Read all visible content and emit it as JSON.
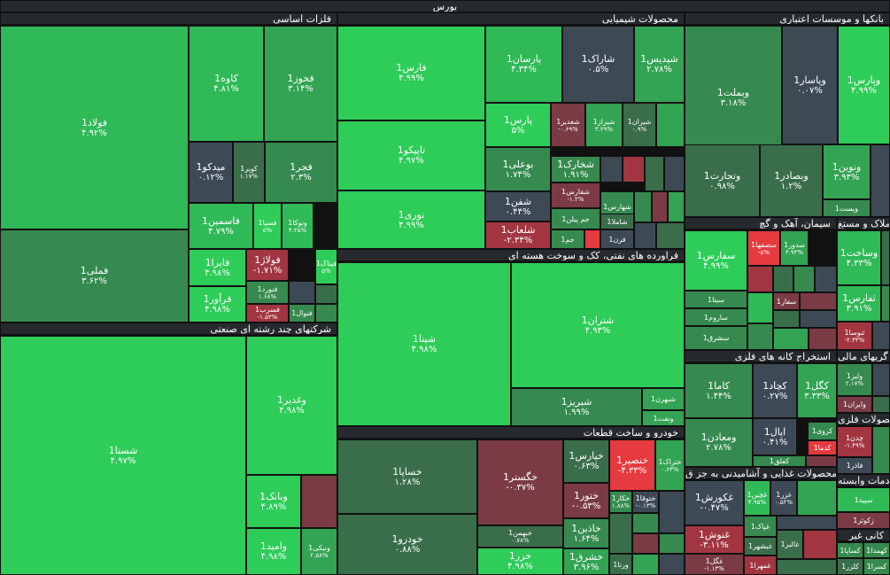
{
  "title": "بورس",
  "colors": {
    "g5": "#2ecc59",
    "g4": "#30b957",
    "g3": "#33a453",
    "g2": "#368a4f",
    "g1": "#3a6e4b",
    "n": "#3d4a55",
    "r1": "#7a3b45",
    "r2": "#a13641",
    "r3": "#e53a3f"
  },
  "groups": [
    {
      "id": "g-banks",
      "name": "بانکها و موسسات اعتباری"
    },
    {
      "id": "g-chem",
      "name": "محصولات شیمیایی"
    },
    {
      "id": "g-metals",
      "name": "فلزات اساسی"
    },
    {
      "id": "g-multi",
      "name": "شرکتهای چند رشته ای صنعتی"
    },
    {
      "id": "g-refinery",
      "name": "فراورده های نفتی، کک و سوخت هسته ای"
    },
    {
      "id": "g-auto",
      "name": "خودرو و ساخت قطعات"
    },
    {
      "id": "g-cement",
      "name": "سیمان، آهک و گچ"
    },
    {
      "id": "g-amlak",
      "name": "املاک و مستغ"
    },
    {
      "id": "g-mining",
      "name": "استخراج کانه های فلزی"
    },
    {
      "id": "g-finance",
      "name": "گریهای مالی"
    },
    {
      "id": "g-metalprod",
      "name": "محصولات فلزی"
    },
    {
      "id": "g-food",
      "name": "محصولات غذایی و آشامیدنی به جز ق"
    },
    {
      "id": "g-services",
      "name": "خدمات وابسته"
    },
    {
      "id": "g-nonmetal",
      "name": "کانی غیر"
    }
  ],
  "tiles": [
    {
      "sym": "فولاد1",
      "chg": "۴.۹۲%",
      "c": "g4"
    },
    {
      "sym": "فملی1",
      "chg": "۳.۶۲%",
      "c": "g2"
    },
    {
      "sym": "کاوه1",
      "chg": "۴.۸۱%",
      "c": "g4"
    },
    {
      "sym": "فخوز1",
      "chg": "۳.۱۴%",
      "c": "g3"
    },
    {
      "sym": "میدکو1",
      "chg": "۰.۱۲%",
      "c": "n"
    },
    {
      "sym": "کویر1",
      "chg": "۱.۱۷%",
      "c": "g1"
    },
    {
      "sym": "فجر1",
      "chg": "۲.۳%",
      "c": "g2"
    },
    {
      "sym": "فاسمین1",
      "chg": "۴.۷۹%",
      "c": "g4"
    },
    {
      "sym": "فسپا1",
      "chg": "۵%",
      "c": "g5"
    },
    {
      "sym": "ونوکا1",
      "chg": "۴.۲۵%",
      "c": "g4"
    },
    {
      "sym": "فایرا1",
      "chg": "۴.۹۸%",
      "c": "g5"
    },
    {
      "sym": "فولاژ1",
      "chg": "-۱.۷۱%",
      "c": "r2"
    },
    {
      "sym": "فیناک1",
      "chg": "۵%",
      "c": "g5"
    },
    {
      "sym": "فنورد1",
      "chg": "۱.۶۸%",
      "c": "g2"
    },
    {
      "sym": "فرآور1",
      "chg": "۴.۹۸%",
      "c": "g5"
    },
    {
      "sym": "فسرب1",
      "chg": "-۱.۵۳%",
      "c": "r2"
    },
    {
      "sym": "فنوال1",
      "chg": "",
      "c": "g2"
    },
    {
      "sym": "شستا1",
      "chg": "۴.۹۷%",
      "c": "g5"
    },
    {
      "sym": "وغدیر1",
      "chg": "۴.۹۸%",
      "c": "g5"
    },
    {
      "sym": "وبانک1",
      "chg": "۴.۸۹%",
      "c": "g5"
    },
    {
      "sym": "وامید1",
      "chg": "۴.۹۸%",
      "c": "g5"
    },
    {
      "sym": "ونیکی1",
      "chg": "۲.۵۸%",
      "c": "g3"
    },
    {
      "sym": "فارس1",
      "chg": "۴.۹۹%",
      "c": "g5"
    },
    {
      "sym": "تاپیکو1",
      "chg": "۴.۹۷%",
      "c": "g5"
    },
    {
      "sym": "نوری1",
      "chg": "۴.۹۹%",
      "c": "g5"
    },
    {
      "sym": "پارسان1",
      "chg": "۴.۳۴%",
      "c": "g4"
    },
    {
      "sym": "شاراک1",
      "chg": "۰.۵%",
      "c": "n"
    },
    {
      "sym": "شپدیس1",
      "chg": "۲.۷۸%",
      "c": "g3"
    },
    {
      "sym": "پارس1",
      "chg": "۵%",
      "c": "g5"
    },
    {
      "sym": "شغدیر1",
      "chg": "-۰.۶۹%",
      "c": "r1"
    },
    {
      "sym": "شیراز1",
      "chg": "۳.۲۹%",
      "c": "g3"
    },
    {
      "sym": "شیران1",
      "chg": "۰.۹%",
      "c": "g1"
    },
    {
      "sym": "بوعلی1",
      "chg": "۱.۷۴%",
      "c": "g2"
    },
    {
      "sym": "شخارک1",
      "chg": "۱.۹۱%",
      "c": "g2"
    },
    {
      "sym": "شفارس1",
      "chg": "-۱.۲%",
      "c": "r1"
    },
    {
      "sym": "شفن1",
      "chg": "۰.۴۴%",
      "c": "n"
    },
    {
      "sym": "جم پیلن1",
      "chg": "",
      "c": "g2"
    },
    {
      "sym": "شهارس1",
      "chg": "",
      "c": "g2"
    },
    {
      "sym": "شلعاب1",
      "chg": "-۲.۳۴%",
      "c": "r2"
    },
    {
      "sym": "جم1",
      "chg": "",
      "c": "g2"
    },
    {
      "sym": "شاملا1",
      "chg": "",
      "c": "g1"
    },
    {
      "sym": "قرن1",
      "chg": "",
      "c": "n"
    },
    {
      "sym": "شپنا1",
      "chg": "۴.۹۸%",
      "c": "g5"
    },
    {
      "sym": "شتران1",
      "chg": "۴.۹۳%",
      "c": "g5"
    },
    {
      "sym": "شبریز1",
      "chg": "۱.۹۹%",
      "c": "g2"
    },
    {
      "sym": "شبهرن1",
      "chg": "",
      "c": "g3"
    },
    {
      "sym": "ونفت1",
      "chg": "",
      "c": "g3"
    },
    {
      "sym": "خساپا1",
      "chg": "۱.۲۸%",
      "c": "g1"
    },
    {
      "sym": "خودرو1",
      "chg": "۰.۸۸%",
      "c": "g1"
    },
    {
      "sym": "خگستر1",
      "chg": "-۰.۳۷%",
      "c": "r1"
    },
    {
      "sym": "خبهمن1",
      "chg": "۰.۷۸%",
      "c": "g1"
    },
    {
      "sym": "خزر1",
      "chg": "۴.۹۸%",
      "c": "g5"
    },
    {
      "sym": "خپارس1",
      "chg": "۰.۶۳%",
      "c": "g1"
    },
    {
      "sym": "خنصیر1",
      "chg": "-۴.۳۳%",
      "c": "r3"
    },
    {
      "sym": "ختراک1",
      "chg": "۰.۶۳%",
      "c": "g3"
    },
    {
      "sym": "ختور1",
      "chg": "-۰.۵۳%",
      "c": "r1"
    },
    {
      "sym": "خکار1",
      "chg": "۱.۸۸%",
      "c": "g2"
    },
    {
      "sym": "ختوقا1",
      "chg": "-۰.۱۳%",
      "c": "n"
    },
    {
      "sym": "خاذین1",
      "chg": "۱.۶۴%",
      "c": "g2"
    },
    {
      "sym": "خشرق1",
      "chg": "۳.۹۶%",
      "c": "g3"
    },
    {
      "sym": "ورنا1",
      "chg": "",
      "c": "g1"
    },
    {
      "sym": "وبملت1",
      "chg": "۳.۱۸%",
      "c": "g2"
    },
    {
      "sym": "وپاسار1",
      "chg": "۰.۰۷%",
      "c": "n"
    },
    {
      "sym": "وپارس1",
      "chg": "۴.۹۹%",
      "c": "g5"
    },
    {
      "sym": "وتجارت1",
      "chg": "۰.۹۸%",
      "c": "g1"
    },
    {
      "sym": "وبصادر1",
      "chg": "۱.۲%",
      "c": "g1"
    },
    {
      "sym": "ونوین1",
      "chg": "۳.۹۳%",
      "c": "g3"
    },
    {
      "sym": "وپست1",
      "chg": "",
      "c": "g2"
    },
    {
      "sym": "سفارس1",
      "chg": "۴.۹۹%",
      "c": "g5"
    },
    {
      "sym": "سصفها1",
      "chg": "-۵%",
      "c": "r3"
    },
    {
      "sym": "سدور1",
      "chg": "۳.۹۳%",
      "c": "g3"
    },
    {
      "sym": "سیتا1",
      "chg": "",
      "c": "g2"
    },
    {
      "sym": "ساروم1",
      "chg": "",
      "c": "g2"
    },
    {
      "sym": "سشرق1",
      "chg": "",
      "c": "g2"
    },
    {
      "sym": "سفار1",
      "chg": "",
      "c": "r1"
    },
    {
      "sym": "وساخت1",
      "chg": "۴.۳۳%",
      "c": "g4"
    },
    {
      "sym": "ثفارس1",
      "chg": "۳.۹۱%",
      "c": "g4"
    },
    {
      "sym": "ثنوسا1",
      "chg": "-۲.۳۳%",
      "c": "r2"
    },
    {
      "sym": "کاما1",
      "chg": "۱.۴۴%",
      "c": "g2"
    },
    {
      "sym": "کچاد1",
      "chg": "۰.۲۷%",
      "c": "n"
    },
    {
      "sym": "کگل1",
      "chg": "۳.۳۳%",
      "c": "g3"
    },
    {
      "sym": "ومعادن1",
      "chg": "۲.۷۸%",
      "c": "g2"
    },
    {
      "sym": "اپال1",
      "chg": "۰.۴۱%",
      "c": "n"
    },
    {
      "sym": "کروی1",
      "chg": "",
      "c": "g2"
    },
    {
      "sym": "کدما1",
      "chg": "",
      "c": "r3"
    },
    {
      "sym": "کفلق1",
      "chg": "",
      "c": "g2"
    },
    {
      "sym": "ولیز1",
      "chg": "۲.۱۷%",
      "c": "g2"
    },
    {
      "sym": "وایران1",
      "chg": "",
      "c": "r1"
    },
    {
      "sym": "چدن1",
      "chg": "-۱.۴۹%",
      "c": "r2"
    },
    {
      "sym": "فاذر1",
      "chg": "",
      "c": "n"
    },
    {
      "sym": "غکورش1",
      "chg": "-۰.۴۷%",
      "c": "n"
    },
    {
      "sym": "غچین1",
      "chg": "۴.۹۵%",
      "c": "g4"
    },
    {
      "sym": "غزر1",
      "chg": "۰.۵۲%",
      "c": "n"
    },
    {
      "sym": "غپاک1",
      "chg": "",
      "c": "g2"
    },
    {
      "sym": "غنوش1",
      "chg": "-۳.۱۱%",
      "c": "r2"
    },
    {
      "sym": "غبشهر1",
      "chg": "",
      "c": "g1"
    },
    {
      "sym": "غالبر1",
      "chg": "",
      "c": "g1"
    },
    {
      "sym": "غگل1",
      "chg": "-۱.۱۳%",
      "c": "r1"
    },
    {
      "sym": "غمهرا1",
      "chg": "",
      "c": "r2"
    },
    {
      "sym": "سپید1",
      "chg": "",
      "c": "g4"
    },
    {
      "sym": "زکوثر1",
      "chg": "",
      "c": "r1"
    },
    {
      "sym": "کساپا1",
      "chg": "",
      "c": "g2"
    },
    {
      "sym": "کهمدا1",
      "chg": "",
      "c": "g2"
    },
    {
      "sym": "کلزر1",
      "chg": "",
      "c": "g1"
    },
    {
      "sym": "کسرا1",
      "chg": "",
      "c": "g2"
    }
  ],
  "fillers": [
    "n",
    "g1",
    "g2",
    "r1",
    "g3",
    "n",
    "r2",
    "g1",
    "n",
    "g2",
    "r1",
    "g3",
    "n",
    "g1",
    "r3",
    "g2",
    "n",
    "g1",
    "r1",
    "g2",
    "g3",
    "n",
    "r2",
    "g1",
    "g2",
    "n",
    "g4",
    "r1",
    "g1",
    "n",
    "g2",
    "g3",
    "r1",
    "n",
    "g1",
    "g2"
  ]
}
